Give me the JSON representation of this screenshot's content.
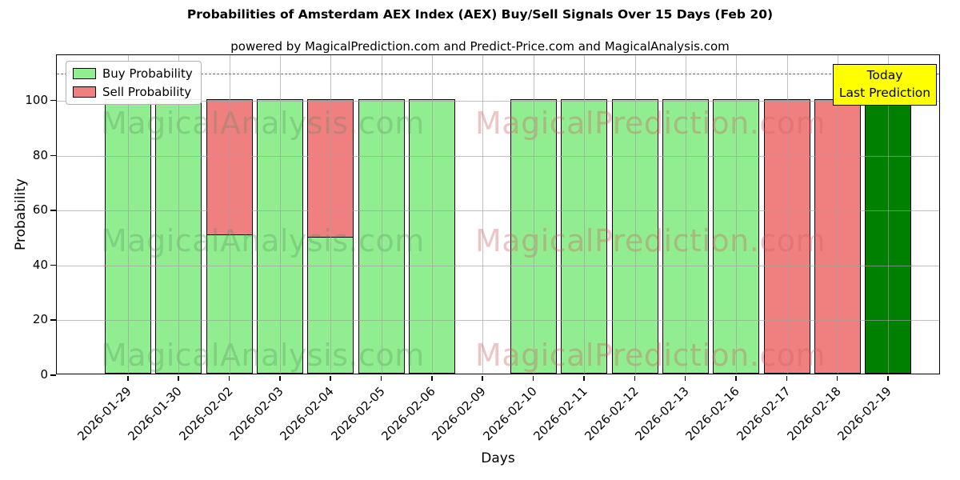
{
  "header": {
    "title": "Probabilities of Amsterdam AEX Index (AEX) Buy/Sell Signals Over 15 Days (Feb 20)",
    "subtitle": "powered by MagicalPrediction.com and Predict-Price.com and MagicalAnalysis.com"
  },
  "legend": {
    "items": [
      {
        "label": "Buy Probability",
        "color": "#90ee90"
      },
      {
        "label": "Sell Probability",
        "color": "#f08080"
      }
    ],
    "position": "upper left"
  },
  "annotation_box": {
    "line1": "Today",
    "line2": "Last Prediction",
    "bg_color": "#ffff00"
  },
  "watermarks": {
    "left_text": "MagicalAnalysis.com",
    "right_text": "MagicalPrediction.com"
  },
  "axes": {
    "x_label": "Days",
    "y_label": "Probability",
    "y_ticks": [
      0,
      20,
      40,
      60,
      80,
      100
    ],
    "y_max": 116.6,
    "threshold_line_y": 110
  },
  "colors": {
    "buy": "#90ee90",
    "sell": "#f08080",
    "today_buy": "#008000",
    "annotation_bg": "#ffff00",
    "grid": "#b0b0b0",
    "dashed_line": "#6e6e6e"
  },
  "chart_data": {
    "type": "bar",
    "stacked": true,
    "title": "Probabilities of Amsterdam AEX Index (AEX) Buy/Sell Signals Over 15 Days (Feb 20)",
    "xlabel": "Days",
    "ylabel": "Probability",
    "ylim": [
      0,
      116.6
    ],
    "grid": true,
    "legend_position": "upper left",
    "threshold_dashed_line": 110,
    "categories": [
      "2026-01-29",
      "2026-01-30",
      "2026-02-02",
      "2026-02-03",
      "2026-02-04",
      "2026-02-05",
      "2026-02-06",
      "2026-02-09",
      "2026-02-10",
      "2026-02-11",
      "2026-02-12",
      "2026-02-13",
      "2026-02-16",
      "2026-02-17",
      "2026-02-18",
      "2026-02-19"
    ],
    "series": [
      {
        "name": "Buy Probability",
        "color": "#90ee90",
        "values": [
          100,
          100,
          51,
          100,
          50,
          100,
          100,
          0,
          100,
          100,
          100,
          100,
          100,
          0,
          0,
          100
        ]
      },
      {
        "name": "Sell Probability",
        "color": "#f08080",
        "values": [
          0,
          0,
          49,
          0,
          50,
          0,
          0,
          0,
          0,
          0,
          0,
          0,
          0,
          100,
          100,
          0
        ]
      }
    ],
    "today_index": 15,
    "today_bar_color": "#008000"
  }
}
